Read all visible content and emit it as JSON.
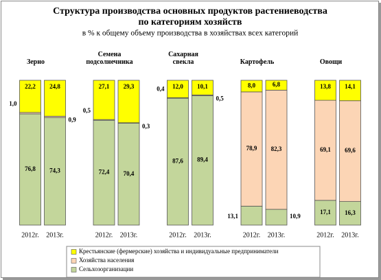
{
  "chart_data": {
    "type": "stacked-bar",
    "title": [
      "Структура производства основных продуктов растениеводства",
      "по категориям хозяйств"
    ],
    "subtitle": "в % к общему объему производства в хозяйствах всех категорий",
    "groups": [
      "Зерно",
      "Семена подсолнечника",
      "Сахарная свекла",
      "Картофель",
      "Овощи"
    ],
    "categories": [
      "2012г.",
      "2013г.",
      "2012г.",
      "2013г.",
      "2012г.",
      "2013г.",
      "2012г.",
      "2013г.",
      "2012г.",
      "2013г."
    ],
    "ylim": [
      0,
      100
    ],
    "series": [
      {
        "name": "Сельхозорганизации",
        "color": "#c3d69b",
        "values": [
          76.8,
          74.3,
          72.4,
          70.4,
          87.6,
          89.4,
          13.1,
          10.9,
          17.1,
          16.3
        ],
        "value_labels": [
          "76,8",
          "74,3",
          "72,4",
          "70,4",
          "87,6",
          "89,4",
          "13,1",
          "10,9",
          "17,1",
          "16,3"
        ]
      },
      {
        "name": "Хозяйства населения",
        "color": "#fcd5b5",
        "values": [
          1.0,
          0.9,
          0.5,
          0.3,
          0.4,
          0.5,
          78.9,
          82.3,
          69.1,
          69.6
        ],
        "value_labels": [
          "1,0",
          "0,9",
          "0,5",
          "0,3",
          "0,4",
          "0,5",
          "78,9",
          "82,3",
          "69,1",
          "69,6"
        ]
      },
      {
        "name": "Крестьянские (фермерские) хозяйства и индивидуальные предприниматели",
        "color": "#ffff00",
        "values": [
          22.2,
          24.8,
          27.1,
          29.3,
          12.0,
          10.1,
          8.0,
          6.8,
          13.8,
          14.1
        ],
        "value_labels": [
          "22,2",
          "24,8",
          "27,1",
          "29,3",
          "12,0",
          "10,1",
          "8,0",
          "6,8",
          "13,8",
          "14,1"
        ]
      }
    ]
  }
}
